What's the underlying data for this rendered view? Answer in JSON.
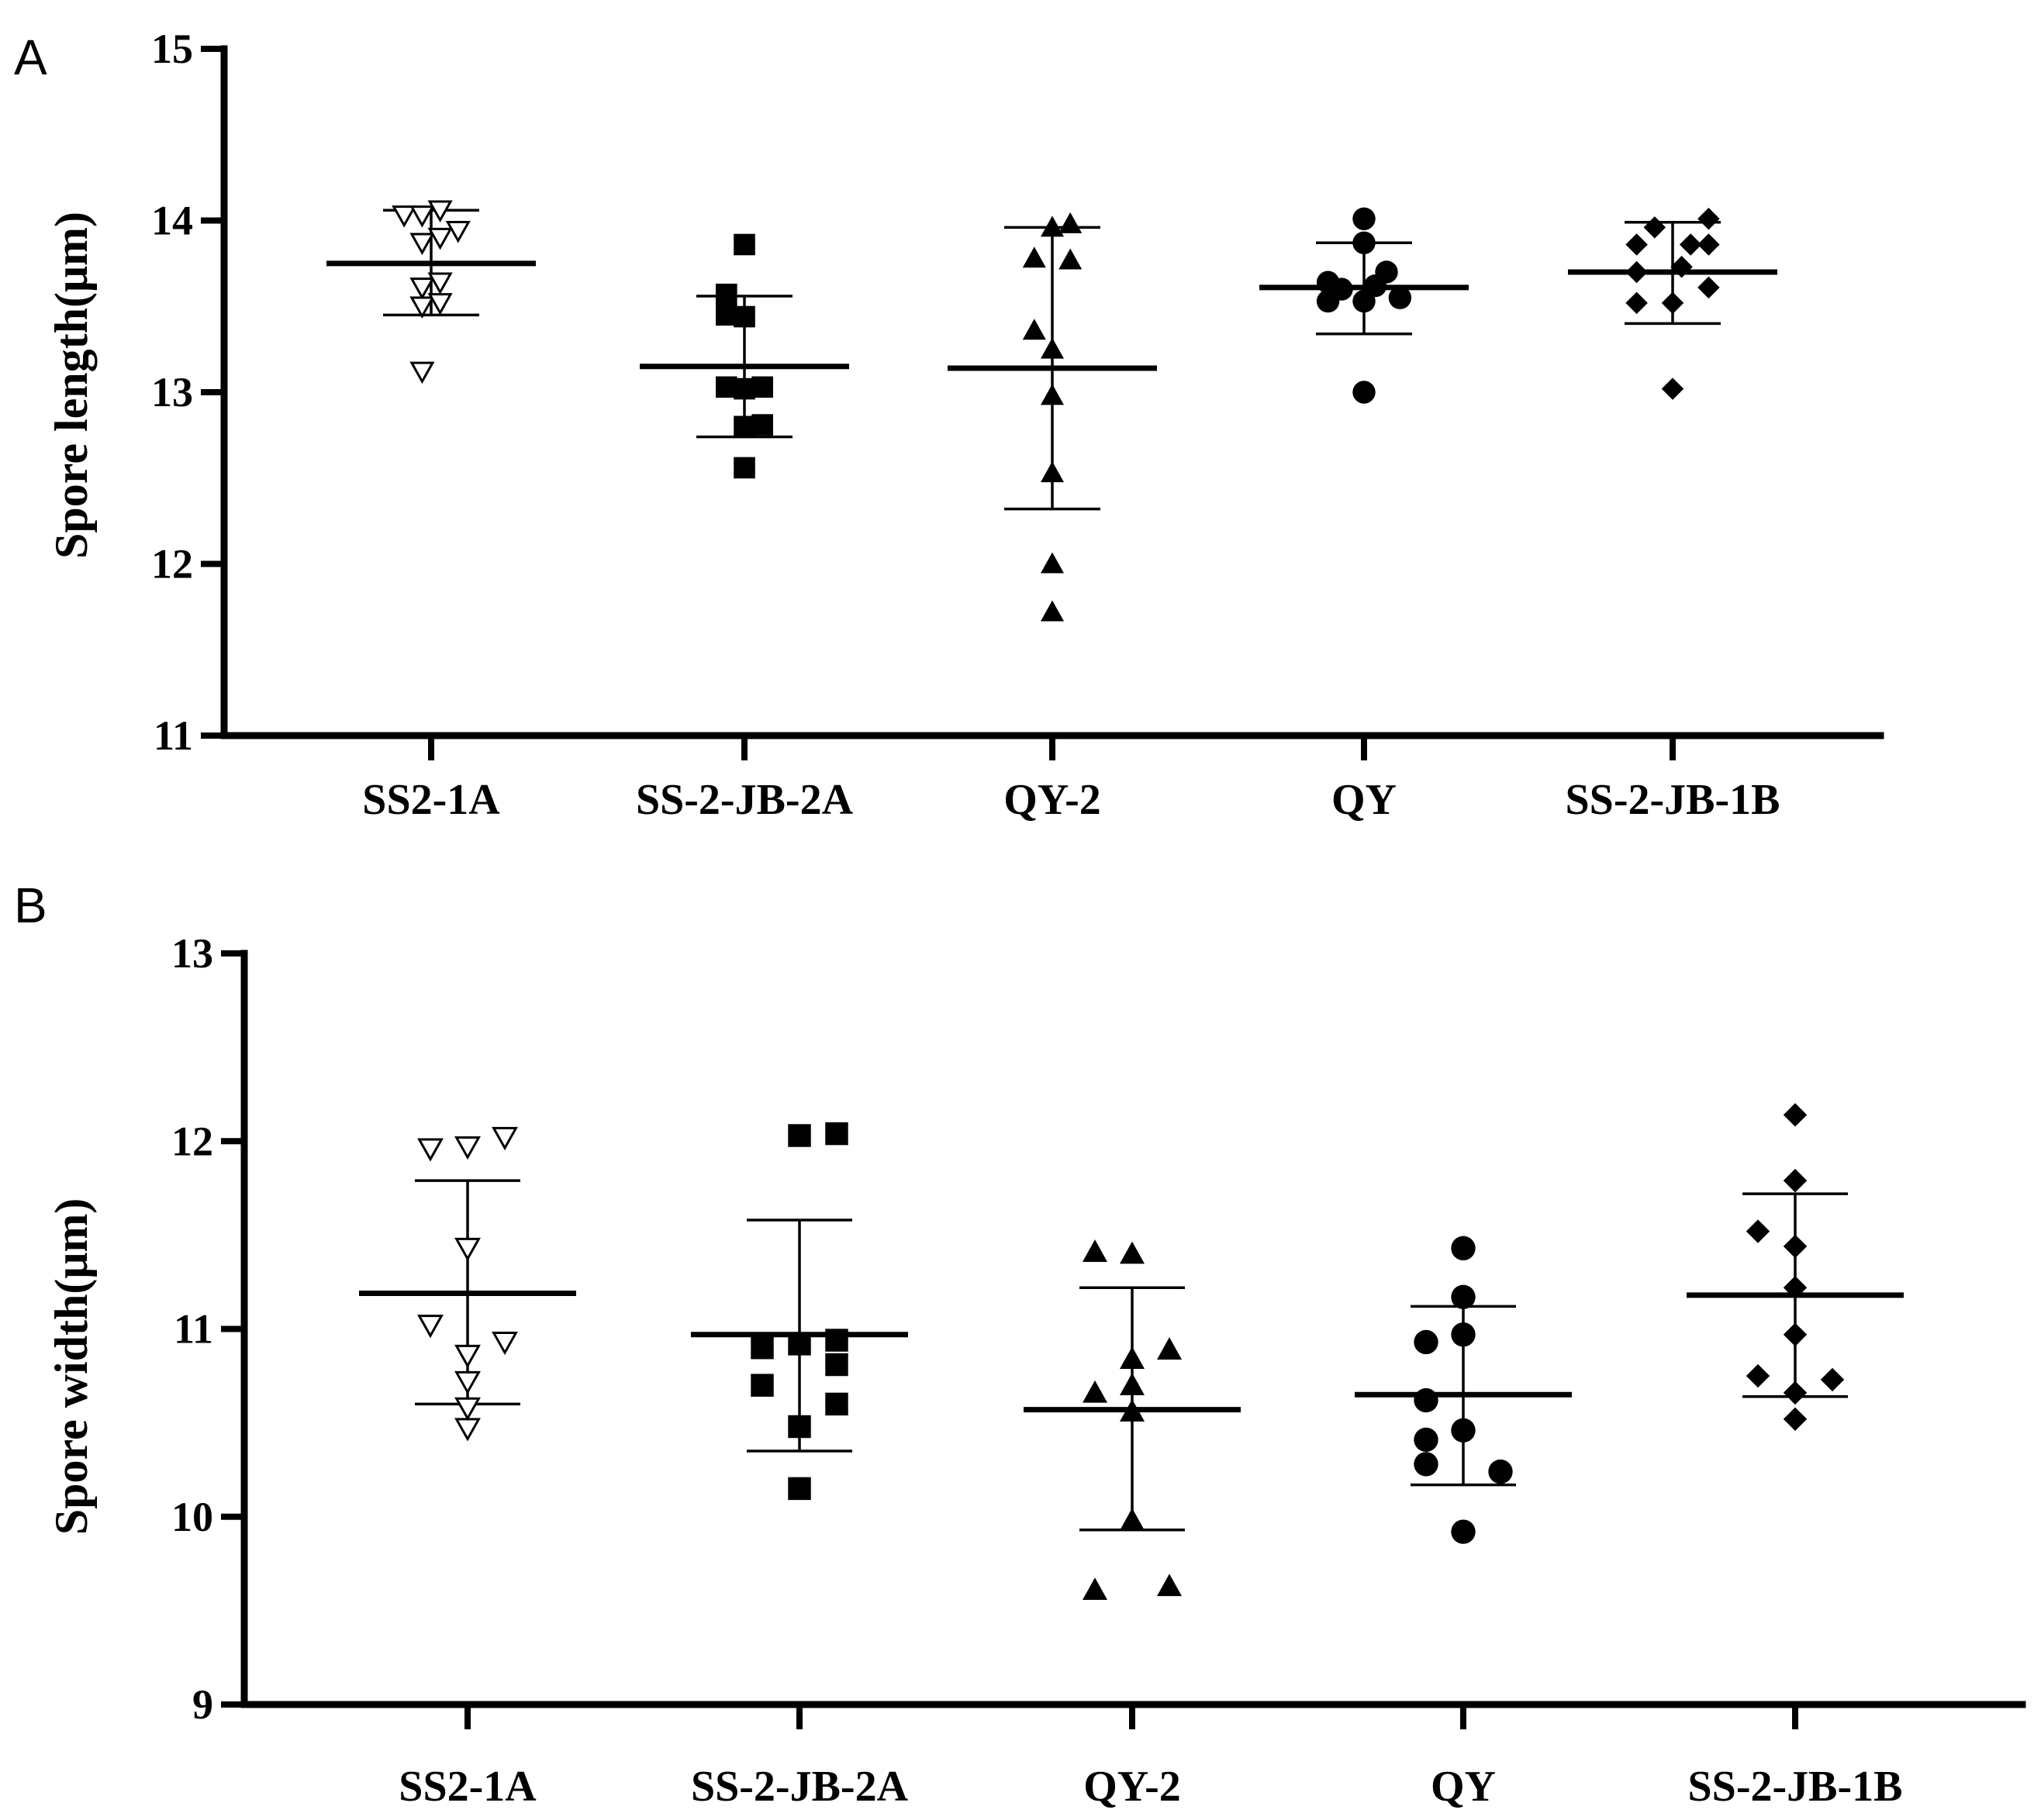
{
  "panels": [
    {
      "label": "A",
      "chart_data": {
        "type": "scatter",
        "title": "",
        "xlabel": "",
        "ylabel": "Spore length(μm)",
        "ylim": [
          11,
          15
        ],
        "yticks": [
          11,
          12,
          13,
          14,
          15
        ],
        "categories": [
          "SS2-1A",
          "SS-2-JB-2A",
          "QY-2",
          "QY",
          "SS-2-JB-1B"
        ],
        "series": [
          {
            "name": "SS2-1A",
            "marker": "triangle-down-open",
            "mean": 13.75,
            "sd_low": 13.45,
            "sd_high": 14.06,
            "points": [
              {
                "dx": -0.6,
                "y": 14.03
              },
              {
                "dx": -0.2,
                "y": 14.03
              },
              {
                "dx": 0.2,
                "y": 14.06
              },
              {
                "dx": 0.6,
                "y": 13.94
              },
              {
                "dx": -0.2,
                "y": 13.87
              },
              {
                "dx": 0.2,
                "y": 13.9
              },
              {
                "dx": -0.2,
                "y": 13.61
              },
              {
                "dx": 0.2,
                "y": 13.64
              },
              {
                "dx": -0.2,
                "y": 13.5
              },
              {
                "dx": 0.2,
                "y": 13.52
              },
              {
                "dx": -0.2,
                "y": 13.12
              }
            ]
          },
          {
            "name": "SS-2-JB-2A",
            "marker": "square",
            "mean": 13.15,
            "sd_low": 12.74,
            "sd_high": 13.56,
            "points": [
              {
                "dx": 0,
                "y": 13.86
              },
              {
                "dx": -0.4,
                "y": 13.57
              },
              {
                "dx": -0.4,
                "y": 13.45
              },
              {
                "dx": 0,
                "y": 13.44
              },
              {
                "dx": -0.4,
                "y": 13.03
              },
              {
                "dx": 0,
                "y": 13.02
              },
              {
                "dx": 0.4,
                "y": 13.03
              },
              {
                "dx": 0,
                "y": 12.8
              },
              {
                "dx": 0.4,
                "y": 12.81
              },
              {
                "dx": 0,
                "y": 12.56
              }
            ]
          },
          {
            "name": "QY-2",
            "marker": "triangle-up",
            "mean": 13.14,
            "sd_low": 12.32,
            "sd_high": 13.96,
            "points": [
              {
                "dx": 0,
                "y": 13.96
              },
              {
                "dx": 0.4,
                "y": 13.98
              },
              {
                "dx": -0.4,
                "y": 13.78
              },
              {
                "dx": 0.4,
                "y": 13.77
              },
              {
                "dx": -0.4,
                "y": 13.36
              },
              {
                "dx": 0,
                "y": 13.25
              },
              {
                "dx": 0,
                "y": 12.98
              },
              {
                "dx": 0,
                "y": 12.53
              },
              {
                "dx": 0,
                "y": 12
              },
              {
                "dx": 0,
                "y": 11.72
              }
            ]
          },
          {
            "name": "QY",
            "marker": "circle",
            "mean": 13.61,
            "sd_low": 13.34,
            "sd_high": 13.87,
            "points": [
              {
                "dx": 0,
                "y": 14.01
              },
              {
                "dx": 0,
                "y": 13.87
              },
              {
                "dx": -0.8,
                "y": 13.64
              },
              {
                "dx": 0.5,
                "y": 13.7
              },
              {
                "dx": 0.25,
                "y": 13.62
              },
              {
                "dx": -0.5,
                "y": 13.6
              },
              {
                "dx": -0.8,
                "y": 13.53
              },
              {
                "dx": 0,
                "y": 13.53
              },
              {
                "dx": 0.8,
                "y": 13.55
              },
              {
                "dx": 0,
                "y": 13
              }
            ]
          },
          {
            "name": "SS-2-JB-1B",
            "marker": "diamond",
            "mean": 13.7,
            "sd_low": 13.4,
            "sd_high": 13.99,
            "points": [
              {
                "dx": 0.8,
                "y": 14.01
              },
              {
                "dx": -0.4,
                "y": 13.96
              },
              {
                "dx": -0.8,
                "y": 13.86
              },
              {
                "dx": 0.4,
                "y": 13.86
              },
              {
                "dx": 0.8,
                "y": 13.86
              },
              {
                "dx": -0.8,
                "y": 13.7
              },
              {
                "dx": 0.2,
                "y": 13.73
              },
              {
                "dx": 0.8,
                "y": 13.61
              },
              {
                "dx": -0.8,
                "y": 13.52
              },
              {
                "dx": 0,
                "y": 13.52
              },
              {
                "dx": 0,
                "y": 13.02
              }
            ]
          }
        ]
      }
    },
    {
      "label": "B",
      "chart_data": {
        "type": "scatter",
        "title": "",
        "xlabel": "",
        "ylabel": "Spore width(μm)",
        "ylim": [
          9,
          13
        ],
        "yticks": [
          9,
          10,
          11,
          12,
          13
        ],
        "categories": [
          "SS2-1A",
          "SS-2-JB-2A",
          "QY-2",
          "QY",
          "SS-2-JB-1B"
        ],
        "series": [
          {
            "name": "SS2-1A",
            "marker": "triangle-down-open",
            "mean": 11.19,
            "sd_low": 10.6,
            "sd_high": 11.79,
            "points": [
              {
                "dx": -0.8,
                "y": 11.96
              },
              {
                "dx": 0,
                "y": 11.97
              },
              {
                "dx": 0.8,
                "y": 12.02
              },
              {
                "dx": 0,
                "y": 11.43
              },
              {
                "dx": -0.8,
                "y": 11.02
              },
              {
                "dx": 0.8,
                "y": 10.93
              },
              {
                "dx": 0,
                "y": 10.86
              },
              {
                "dx": 0,
                "y": 10.72
              },
              {
                "dx": 0,
                "y": 10.58
              },
              {
                "dx": 0,
                "y": 10.47
              }
            ]
          },
          {
            "name": "SS-2-JB-2A",
            "marker": "square",
            "mean": 10.97,
            "sd_low": 10.35,
            "sd_high": 11.58,
            "points": [
              {
                "dx": 0,
                "y": 12.03
              },
              {
                "dx": 0.8,
                "y": 12.04
              },
              {
                "dx": -0.8,
                "y": 10.9
              },
              {
                "dx": 0,
                "y": 10.92
              },
              {
                "dx": 0.8,
                "y": 10.94
              },
              {
                "dx": 0.8,
                "y": 10.81
              },
              {
                "dx": -0.8,
                "y": 10.7
              },
              {
                "dx": 0.8,
                "y": 10.6
              },
              {
                "dx": 0,
                "y": 10.48
              },
              {
                "dx": 0,
                "y": 10.15
              }
            ]
          },
          {
            "name": "QY-2",
            "marker": "triangle-up",
            "mean": 10.57,
            "sd_low": 9.93,
            "sd_high": 11.22,
            "points": [
              {
                "dx": -0.8,
                "y": 11.41
              },
              {
                "dx": 0,
                "y": 11.4
              },
              {
                "dx": 0.8,
                "y": 10.89
              },
              {
                "dx": 0,
                "y": 10.84
              },
              {
                "dx": -0.8,
                "y": 10.66
              },
              {
                "dx": 0,
                "y": 10.7
              },
              {
                "dx": 0,
                "y": 10.56
              },
              {
                "dx": 0,
                "y": 9.98
              },
              {
                "dx": -0.8,
                "y": 9.61
              },
              {
                "dx": 0.8,
                "y": 9.63
              }
            ]
          },
          {
            "name": "QY",
            "marker": "circle",
            "mean": 10.65,
            "sd_low": 10.17,
            "sd_high": 11.12,
            "points": [
              {
                "dx": 0,
                "y": 11.43
              },
              {
                "dx": 0,
                "y": 11.17
              },
              {
                "dx": -0.8,
                "y": 10.93
              },
              {
                "dx": 0,
                "y": 10.97
              },
              {
                "dx": -0.8,
                "y": 10.62
              },
              {
                "dx": -0.8,
                "y": 10.41
              },
              {
                "dx": 0,
                "y": 10.46
              },
              {
                "dx": -0.8,
                "y": 10.28
              },
              {
                "dx": 0.8,
                "y": 10.24
              },
              {
                "dx": 0,
                "y": 9.92
              }
            ]
          },
          {
            "name": "SS-2-JB-1B",
            "marker": "diamond",
            "mean": 11.18,
            "sd_low": 10.64,
            "sd_high": 11.72,
            "points": [
              {
                "dx": 0,
                "y": 12.14
              },
              {
                "dx": 0,
                "y": 11.79
              },
              {
                "dx": -0.8,
                "y": 11.52
              },
              {
                "dx": 0,
                "y": 11.44
              },
              {
                "dx": 0,
                "y": 11.22
              },
              {
                "dx": 0,
                "y": 10.97
              },
              {
                "dx": -0.8,
                "y": 10.75
              },
              {
                "dx": 0.8,
                "y": 10.73
              },
              {
                "dx": 0,
                "y": 10.66
              },
              {
                "dx": 0,
                "y": 10.52
              }
            ]
          }
        ]
      }
    }
  ]
}
